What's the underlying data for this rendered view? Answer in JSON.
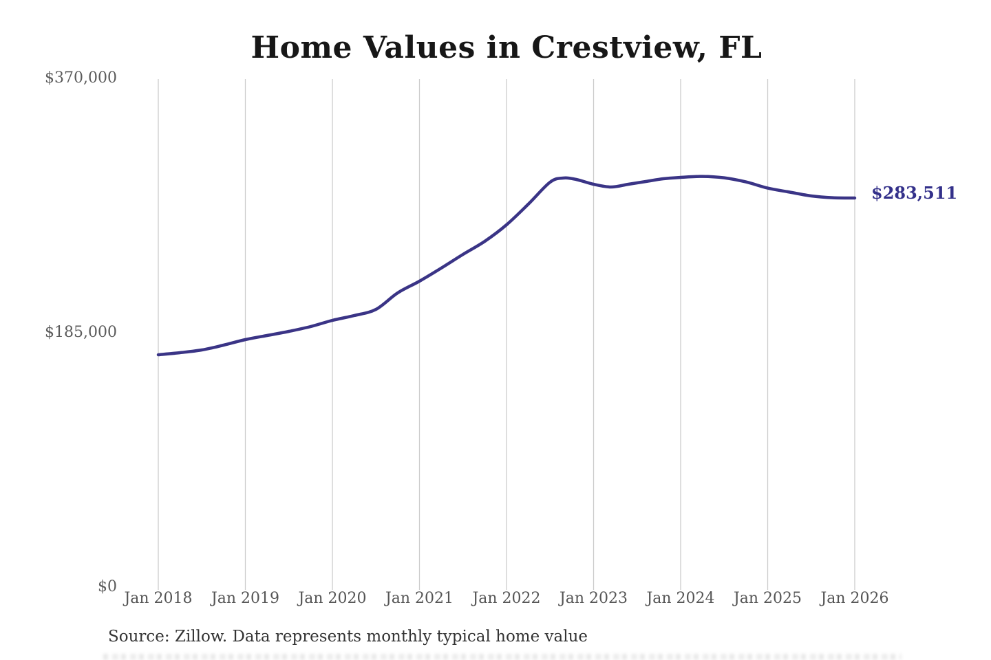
{
  "chart_data": {
    "type": "line",
    "title": "Home Values in Crestview, FL",
    "x_range": [
      2018,
      2026
    ],
    "y_range": [
      0,
      370000
    ],
    "grid": "vertical-only",
    "legend": "none",
    "x_ticks": [
      "Jan 2018",
      "Jan 2019",
      "Jan 2020",
      "Jan 2021",
      "Jan 2022",
      "Jan 2023",
      "Jan 2024",
      "Jan 2025",
      "Jan 2026"
    ],
    "y_ticks": [
      {
        "label": "$370,000",
        "value": 370000
      },
      {
        "label": "$185,000",
        "value": 185000
      },
      {
        "label": "$0",
        "value": 0
      }
    ],
    "colors": {
      "line": "#3a3486",
      "end_label": "#33308a",
      "gridline": "#cccccc",
      "title": "#171717",
      "axis_text": "#555555"
    },
    "end_label": "$283,511",
    "end_value": 283511,
    "series": [
      {
        "name": "typical_home_value",
        "points": [
          [
            2018.0,
            169500
          ],
          [
            2018.25,
            171000
          ],
          [
            2018.5,
            173000
          ],
          [
            2018.75,
            176500
          ],
          [
            2019.0,
            180500
          ],
          [
            2019.25,
            183500
          ],
          [
            2019.5,
            186500
          ],
          [
            2019.75,
            190000
          ],
          [
            2020.0,
            194500
          ],
          [
            2020.25,
            198000
          ],
          [
            2020.5,
            202500
          ],
          [
            2020.75,
            214500
          ],
          [
            2021.0,
            223000
          ],
          [
            2021.25,
            232500
          ],
          [
            2021.5,
            242500
          ],
          [
            2021.75,
            252000
          ],
          [
            2022.0,
            264000
          ],
          [
            2022.25,
            279000
          ],
          [
            2022.5,
            295000
          ],
          [
            2022.65,
            298000
          ],
          [
            2022.8,
            297000
          ],
          [
            2023.0,
            293500
          ],
          [
            2023.2,
            291500
          ],
          [
            2023.4,
            293500
          ],
          [
            2023.6,
            295500
          ],
          [
            2023.8,
            297500
          ],
          [
            2024.0,
            298500
          ],
          [
            2024.25,
            299200
          ],
          [
            2024.5,
            298200
          ],
          [
            2024.75,
            295200
          ],
          [
            2025.0,
            290700
          ],
          [
            2025.25,
            287800
          ],
          [
            2025.5,
            285000
          ],
          [
            2025.75,
            283700
          ],
          [
            2026.0,
            283511
          ]
        ]
      }
    ]
  },
  "footer": {
    "source_text": "Source: Zillow. Data represents monthly typical home value"
  }
}
